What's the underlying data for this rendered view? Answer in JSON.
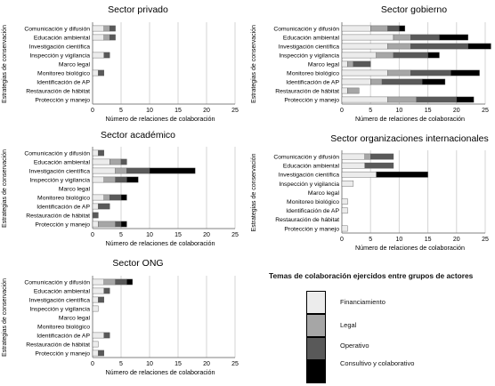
{
  "chart_data": [
    {
      "type": "bar",
      "title": "Sector privado",
      "xlabel": "Número de relaciones de colaboración",
      "ylabel": "Estrategias de conservación",
      "categories": [
        "Comunicación y difusión",
        "Educación ambiental",
        "Investigación científica",
        "Inspección y vigilancia",
        "Marco legal",
        "Monitoreo biológico",
        "Identificación de AP",
        "Restauración de hábitat",
        "Protección y manejo"
      ],
      "xlim": [
        0,
        25
      ],
      "xticks": [
        "0",
        "5",
        "10",
        "15",
        "20",
        "25"
      ],
      "series": [
        {
          "name": "Financiamiento",
          "values": [
            2,
            2,
            0,
            2,
            0,
            1,
            0,
            0,
            0
          ]
        },
        {
          "name": "Legal",
          "values": [
            1,
            1,
            0,
            0,
            0,
            0,
            0,
            0,
            0
          ]
        },
        {
          "name": "Operativo",
          "values": [
            1,
            1,
            0,
            1,
            0,
            1,
            0,
            0,
            0
          ]
        },
        {
          "name": "Consultivo y colaborativo",
          "values": [
            0,
            0,
            0,
            0,
            0,
            0,
            0,
            0,
            0
          ]
        }
      ]
    },
    {
      "type": "bar",
      "title": "Sector gobierno",
      "xlabel": "Número de relaciones de colaboración",
      "ylabel": "Estrategias de conservación",
      "categories": [
        "Comunicación y difusión",
        "Educación ambiental",
        "Investigación científica",
        "Inspección y vigilancia",
        "Marco legal",
        "Monitoreo biológico",
        "Identificación de AP",
        "Restauración de hábitat",
        "Protección y manejo"
      ],
      "xlim": [
        0,
        25
      ],
      "xticks": [
        "0",
        "5",
        "10",
        "15",
        "20",
        "25"
      ],
      "series": [
        {
          "name": "Financiamiento",
          "values": [
            5,
            9,
            8,
            6,
            1,
            8,
            5,
            1,
            8
          ]
        },
        {
          "name": "Legal",
          "values": [
            3,
            3,
            4,
            3,
            1,
            4,
            2,
            2,
            5
          ]
        },
        {
          "name": "Operativo",
          "values": [
            2,
            5,
            10,
            6,
            3,
            7,
            7,
            0,
            7
          ]
        },
        {
          "name": "Consultivo y colaborativo",
          "values": [
            1,
            5,
            4,
            2,
            0,
            5,
            4,
            0,
            3
          ]
        }
      ]
    },
    {
      "type": "bar",
      "title": "Sector académico",
      "xlabel": "Número de relaciones de colaboración",
      "ylabel": "Estrategias de conservación",
      "categories": [
        "Comunicación y difusión",
        "Educación ambiental",
        "Investigación científica",
        "Inspección y vigilancia",
        "Marco legal",
        "Monitoreo biológico",
        "Identificación de AP",
        "Restauración de hábitat",
        "Protección y manejo"
      ],
      "xlim": [
        0,
        25
      ],
      "xticks": [
        "0",
        "5",
        "10",
        "15",
        "20",
        "25"
      ],
      "series": [
        {
          "name": "Financiamiento",
          "values": [
            1,
            3,
            4,
            2,
            0,
            2,
            1,
            0,
            1
          ]
        },
        {
          "name": "Legal",
          "values": [
            0,
            2,
            2,
            2,
            0,
            1,
            0,
            0,
            3
          ]
        },
        {
          "name": "Operativo",
          "values": [
            1,
            1,
            4,
            2,
            0,
            2,
            2,
            1,
            1
          ]
        },
        {
          "name": "Consultivo y colaborativo",
          "values": [
            0,
            0,
            8,
            2,
            0,
            1,
            0,
            0,
            1
          ]
        }
      ]
    },
    {
      "type": "bar",
      "title": "Sector organizaciones internacionales",
      "xlabel": "Número de relaciones de colaboración",
      "ylabel": "Estrategias de conservación",
      "categories": [
        "Comunicación y difusión",
        "Educación ambiental",
        "Investigación científica",
        "Inspección y vigilancia",
        "Marco legal",
        "Monitoreo biológico",
        "Identificación de AP",
        "Restauración de hábitat",
        "Protección y manejo"
      ],
      "xlim": [
        0,
        25
      ],
      "xticks": [
        "0",
        "5",
        "10",
        "15",
        "20",
        "25"
      ],
      "series": [
        {
          "name": "Financiamiento",
          "values": [
            4,
            4,
            6,
            2,
            0,
            1,
            1,
            0,
            1
          ]
        },
        {
          "name": "Legal",
          "values": [
            1,
            0,
            0,
            0,
            0,
            0,
            0,
            0,
            0
          ]
        },
        {
          "name": "Operativo",
          "values": [
            4,
            5,
            0,
            0,
            0,
            0,
            0,
            0,
            0
          ]
        },
        {
          "name": "Consultivo y colaborativo",
          "values": [
            0,
            0,
            9,
            0,
            0,
            0,
            0,
            0,
            0
          ]
        }
      ]
    },
    {
      "type": "bar",
      "title": "Sector ONG",
      "xlabel": "Número de relaciones de colaboración",
      "ylabel": "Estrategias de conservación",
      "categories": [
        "Comunicación y difusión",
        "Educación ambiental",
        "Investigación científica",
        "Inspección y vigilancia",
        "Marco legal",
        "Monitoreo biológico",
        "Identificación de AP",
        "Restauración de hábitat",
        "Protección y manejo"
      ],
      "xlim": [
        0,
        25
      ],
      "xticks": [
        "0",
        "5",
        "10",
        "15",
        "20",
        "25"
      ],
      "series": [
        {
          "name": "Financiamiento",
          "values": [
            2,
            2,
            1,
            1,
            0,
            0,
            2,
            1,
            1
          ]
        },
        {
          "name": "Legal",
          "values": [
            2,
            0,
            0,
            0,
            0,
            0,
            0,
            0,
            0
          ]
        },
        {
          "name": "Operativo",
          "values": [
            2,
            1,
            1,
            0,
            0,
            0,
            1,
            0,
            1
          ]
        },
        {
          "name": "Consultivo y colaborativo",
          "values": [
            1,
            0,
            0,
            0,
            0,
            0,
            0,
            0,
            0
          ]
        }
      ]
    }
  ],
  "legend": {
    "title": "Temas de colaboración ejercidos entre grupos de actores",
    "items": [
      {
        "label": "Financiamiento",
        "color": "#ececec"
      },
      {
        "label": "Legal",
        "color": "#a6a6a6"
      },
      {
        "label": "Operativo",
        "color": "#595959"
      },
      {
        "label": "Consultivo y colaborativo",
        "color": "#000000"
      }
    ]
  }
}
